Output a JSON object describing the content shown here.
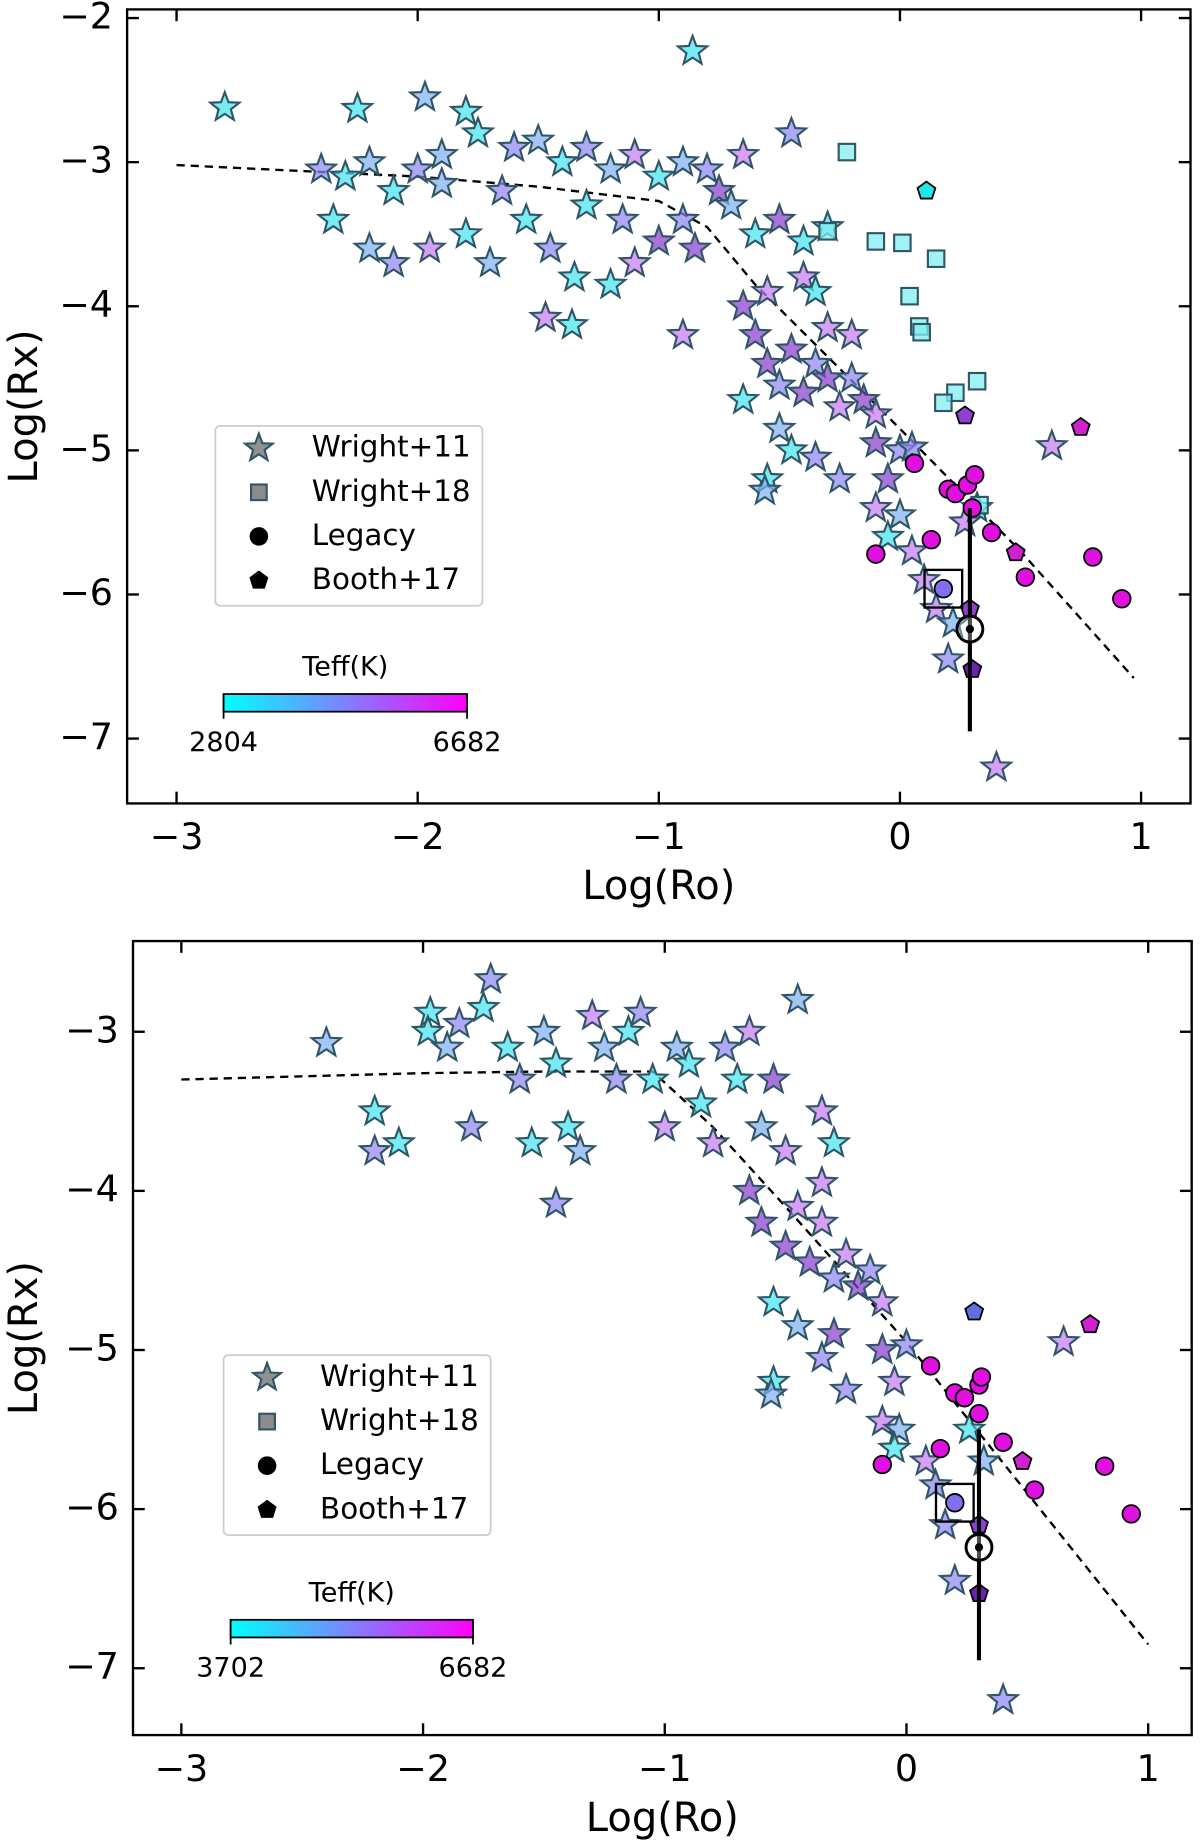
{
  "chart_data": [
    {
      "type": "scatter",
      "xlabel": "Log(Ro)",
      "ylabel": "Log(Rx)",
      "xlim": [
        -3.205,
        1.205
      ],
      "ylim": [
        -7.45,
        -1.94
      ],
      "xticks": [
        {
          "value": -3,
          "label": "−3"
        },
        {
          "value": -2,
          "label": "−2"
        },
        {
          "value": -1,
          "label": "−1"
        },
        0,
        1
      ],
      "yticks": [
        {
          "value": -7,
          "label": "−7"
        },
        {
          "value": -6,
          "label": "−6"
        },
        {
          "value": -5,
          "label": "−5"
        },
        {
          "value": -4,
          "label": "−4"
        },
        {
          "value": -3,
          "label": "−3"
        },
        {
          "value": -2,
          "label": "−2"
        }
      ],
      "colorbar": {
        "label": "Teff(K)",
        "min": 2804,
        "max": 6682,
        "colors": [
          "#00ffff",
          "#8080ff",
          "#ff00ff"
        ]
      },
      "fit": {
        "x": [
          -3,
          -2,
          -1.5,
          -1,
          -0.8,
          -0.6,
          -0.3,
          0,
          0.5,
          0.97
        ],
        "y": [
          -3.02,
          -3.1,
          -3.17,
          -3.27,
          -3.45,
          -3.85,
          -4.35,
          -4.85,
          -5.7,
          -6.58
        ]
      },
      "sun": {
        "x": 0.29,
        "y": -6.24,
        "ylow": -6.95,
        "yhigh": -5.4
      },
      "highlight": {
        "x": 0.18,
        "y": -5.96
      },
      "series": [
        {
          "name": "Wright+11",
          "marker": "star",
          "legend_color": "#666666",
          "x": [
            -2.8,
            -2.25,
            -1.97,
            -1.8,
            -0.86,
            -2.4,
            -2.3,
            -2.2,
            -2.1,
            -2.0,
            -1.9,
            -1.75,
            -1.6,
            -1.5,
            -1.4,
            -1.3,
            -1.2,
            -1.1,
            -1.0,
            -0.9,
            -0.8,
            -0.75,
            -0.65,
            -0.45,
            -2.35,
            -2.2,
            -2.1,
            -1.95,
            -1.8,
            -1.7,
            -1.55,
            -1.45,
            -1.35,
            -1.47,
            -1.36,
            -1.2,
            -1.1,
            -1.0,
            -0.9,
            -0.85,
            -0.7,
            -0.6,
            -0.5,
            -0.55,
            -0.4,
            -0.4,
            -0.3,
            -0.35,
            -0.3,
            -0.2,
            -0.65,
            -0.6,
            -0.55,
            -0.5,
            -0.45,
            -0.4,
            -0.35,
            -0.3,
            -0.25,
            -0.2,
            -0.15,
            -0.1,
            -0.65,
            -0.5,
            -0.45,
            -0.35,
            -0.25,
            -0.55,
            -0.56,
            -0.1,
            0.0,
            -0.05,
            0.05,
            -0.1,
            0.0,
            -0.05,
            0.05,
            0.1,
            0.15,
            0.22,
            0.27,
            0.2,
            0.4,
            0.63,
            -1.9,
            -1.65,
            -1.3,
            -1.15,
            -0.9,
            0.32
          ],
          "y": [
            -2.62,
            -2.63,
            -2.55,
            -2.65,
            -2.23,
            -3.05,
            -3.1,
            -3.0,
            -3.2,
            -3.05,
            -2.95,
            -2.8,
            -2.9,
            -2.85,
            -3.0,
            -2.9,
            -3.05,
            -2.95,
            -3.1,
            -3.0,
            -3.05,
            -3.2,
            -2.95,
            -2.8,
            -3.4,
            -3.6,
            -3.7,
            -3.6,
            -3.5,
            -3.7,
            -3.4,
            -3.6,
            -3.8,
            -4.08,
            -4.13,
            -3.85,
            -3.7,
            -3.55,
            -3.4,
            -3.6,
            -3.3,
            -3.5,
            -3.4,
            -3.9,
            -3.8,
            -3.55,
            -3.45,
            -3.9,
            -4.15,
            -4.2,
            -4.0,
            -4.2,
            -4.4,
            -4.55,
            -4.3,
            -4.6,
            -4.4,
            -4.5,
            -4.7,
            -4.5,
            -4.65,
            -4.75,
            -4.65,
            -4.85,
            -5.0,
            -5.05,
            -5.2,
            -5.2,
            -5.28,
            -4.95,
            -5.0,
            -5.2,
            -4.98,
            -5.4,
            -5.45,
            -5.6,
            -5.7,
            -5.9,
            -6.1,
            -6.2,
            -5.5,
            -6.45,
            -7.2,
            -4.97,
            -3.15,
            -3.2,
            -3.3,
            -3.4,
            -4.2,
            -5.4
          ],
          "colors": [
            "#45e3ee",
            "#45e3ee",
            "#7fb0f0",
            "#45e3ee",
            "#45e3ee",
            "#8f86f2",
            "#45e3ee",
            "#7fb0f0",
            "#45e3ee",
            "#8f86f2",
            "#7fb0f0",
            "#45e3ee",
            "#8f86f2",
            "#7fb0f0",
            "#45e3ee",
            "#8f86f2",
            "#7fb0f0",
            "#c87af2",
            "#45e3ee",
            "#7fb0f0",
            "#8f86f2",
            "#8a3fd0",
            "#c87af2",
            "#8f86f2",
            "#45e3ee",
            "#7fb0f0",
            "#8f86f2",
            "#c87af2",
            "#45e3ee",
            "#7fb0f0",
            "#45e3ee",
            "#8f86f2",
            "#45e3ee",
            "#c87af2",
            "#45e3ee",
            "#45e3ee",
            "#c87af2",
            "#8a3fd0",
            "#8f86f2",
            "#8a3fd0",
            "#7fb0f0",
            "#45e3ee",
            "#8a3fd0",
            "#c87af2",
            "#c87af2",
            "#45e3ee",
            "#45e3ee",
            "#45e3ee",
            "#c87af2",
            "#c87af2",
            "#8a3fd0",
            "#8a3fd0",
            "#8a3fd0",
            "#8f86f2",
            "#8a3fd0",
            "#8a3fd0",
            "#8f86f2",
            "#8a3fd0",
            "#c87af2",
            "#8f86f2",
            "#8a3fd0",
            "#c87af2",
            "#45e3ee",
            "#7fb0f0",
            "#45e3ee",
            "#8f86f2",
            "#8f86f2",
            "#45e3ee",
            "#7fb0f0",
            "#8a3fd0",
            "#8f86f2",
            "#8a3fd0",
            "#8f86f2",
            "#c87af2",
            "#7fb0f0",
            "#45e3ee",
            "#c87af2",
            "#c87af2",
            "#c87af2",
            "#7fb0f0",
            "#c87af2",
            "#8f86f2",
            "#c87af2",
            "#c87af2",
            "#7fb0f0",
            "#8f86f2",
            "#45e3ee",
            "#8f86f2",
            "#c87af2",
            "#45e3ee"
          ]
        },
        {
          "name": "Wright+18",
          "marker": "square",
          "legend_color": "#666666",
          "x": [
            -0.22,
            -0.3,
            -0.1,
            0.01,
            0.15,
            0.04,
            0.08,
            0.09,
            0.32,
            0.23,
            0.18,
            0.33
          ],
          "y": [
            -2.93,
            -3.48,
            -3.55,
            -3.56,
            -3.67,
            -3.93,
            -4.14,
            -4.18,
            -4.52,
            -4.6,
            -4.67,
            -5.38
          ],
          "colors": [
            "#80eef2",
            "#80eef2",
            "#80eef2",
            "#80eef2",
            "#80eef2",
            "#80eef2",
            "#80eef2",
            "#80eef2",
            "#80eef2",
            "#80eef2",
            "#80eef2",
            "#80eef2"
          ]
        },
        {
          "name": "Legacy",
          "marker": "circle",
          "legend_color": "#000000",
          "x": [
            0.06,
            0.2,
            0.23,
            0.28,
            0.31,
            0.3,
            0.38,
            0.52,
            0.8,
            0.92,
            -0.1,
            0.13,
            0.18
          ],
          "y": [
            -5.09,
            -5.27,
            -5.3,
            -5.24,
            -5.17,
            -5.4,
            -5.57,
            -5.88,
            -5.74,
            -6.03,
            -5.72,
            -5.62,
            -5.96
          ],
          "colors": [
            "#e010e0",
            "#e010e0",
            "#e010e0",
            "#e010e0",
            "#e010e0",
            "#e010e0",
            "#e010e0",
            "#e010e0",
            "#e010e0",
            "#e010e0",
            "#e010e0",
            "#e010e0",
            "#8070f0"
          ]
        },
        {
          "name": "Booth+17",
          "marker": "pentagon",
          "legend_color": "#000000",
          "x": [
            0.11,
            0.27,
            0.75,
            0.48,
            0.29,
            0.3
          ],
          "y": [
            -3.2,
            -4.76,
            -4.84,
            -5.71,
            -6.1,
            -6.52
          ],
          "colors": [
            "#20e8e8",
            "#9040d0",
            "#d020d0",
            "#d020d0",
            "#9040d0",
            "#7020b0"
          ]
        }
      ]
    },
    {
      "type": "scatter",
      "xlabel": "Log(Ro)",
      "ylabel": "Log(Rx)",
      "xlim": [
        -3.2,
        1.18
      ],
      "ylim": [
        -7.42,
        -2.43
      ],
      "xticks": [
        {
          "value": -3,
          "label": "−3"
        },
        {
          "value": -2,
          "label": "−2"
        },
        {
          "value": -1,
          "label": "−1"
        },
        0,
        1
      ],
      "yticks": [
        {
          "value": -7,
          "label": "−7"
        },
        {
          "value": -6,
          "label": "−6"
        },
        {
          "value": -5,
          "label": "−5"
        },
        {
          "value": -4,
          "label": "−4"
        },
        {
          "value": -3,
          "label": "−3"
        }
      ],
      "colorbar": {
        "label": "Teff(K)",
        "min": 3702,
        "max": 6682,
        "colors": [
          "#00ffff",
          "#8080ff",
          "#ff00ff"
        ]
      },
      "fit": {
        "x": [
          -3,
          -2,
          -1.5,
          -1.05,
          -0.8,
          -0.5,
          0,
          0.5,
          1
        ],
        "y": [
          -3.3,
          -3.26,
          -3.25,
          -3.25,
          -3.6,
          -4.1,
          -4.95,
          -5.9,
          -6.85
        ]
      },
      "sun": {
        "x": 0.3,
        "y": -6.24,
        "ylow": -6.95,
        "yhigh": -5.5
      },
      "highlight": {
        "x": 0.2,
        "y": -5.96
      },
      "series": [
        {
          "name": "Wright+11",
          "marker": "star",
          "legend_color": "#666666",
          "x": [
            -2.4,
            -2.2,
            -2.2,
            -2.1,
            -1.97,
            -1.98,
            -1.9,
            -1.85,
            -1.8,
            -1.75,
            -1.72,
            -1.65,
            -1.6,
            -1.55,
            -1.5,
            -1.45,
            -1.4,
            -1.45,
            -1.35,
            -1.3,
            -1.25,
            -1.2,
            -1.15,
            -1.1,
            -1.05,
            -1.0,
            -0.95,
            -0.9,
            -0.85,
            -0.8,
            -0.75,
            -0.7,
            -0.65,
            -0.6,
            -0.55,
            -0.5,
            -0.45,
            -0.35,
            -0.3,
            -0.35,
            -0.65,
            -0.6,
            -0.5,
            -0.45,
            -0.4,
            -0.35,
            -0.3,
            -0.25,
            -0.2,
            -0.15,
            -0.1,
            -0.55,
            -0.45,
            -0.35,
            -0.3,
            -0.25,
            -0.55,
            -0.56,
            -0.1,
            0.0,
            -0.05,
            -0.1,
            -0.03,
            -0.05,
            0.08,
            0.12,
            0.16,
            0.2,
            0.26,
            0.32,
            0.4,
            0.65
          ],
          "y": [
            -3.07,
            -3.5,
            -3.75,
            -3.7,
            -2.88,
            -3.0,
            -3.1,
            -2.95,
            -3.6,
            -2.85,
            -2.67,
            -3.1,
            -3.3,
            -3.7,
            -3.0,
            -3.2,
            -3.6,
            -4.08,
            -3.75,
            -2.9,
            -3.1,
            -3.3,
            -3.0,
            -2.88,
            -3.3,
            -3.6,
            -3.1,
            -3.2,
            -3.45,
            -3.7,
            -3.1,
            -3.3,
            -3.0,
            -3.6,
            -3.3,
            -3.75,
            -2.8,
            -3.5,
            -3.7,
            -3.95,
            -4.0,
            -4.2,
            -4.35,
            -4.1,
            -4.45,
            -4.2,
            -4.55,
            -4.4,
            -4.6,
            -4.5,
            -4.7,
            -4.7,
            -4.85,
            -5.05,
            -4.9,
            -5.25,
            -5.2,
            -5.28,
            -5.0,
            -4.97,
            -5.2,
            -5.45,
            -5.5,
            -5.62,
            -5.7,
            -5.85,
            -6.1,
            -6.45,
            -5.5,
            -5.7,
            -7.2,
            -4.95
          ],
          "colors": [
            "#7fb0f0",
            "#45e3ee",
            "#8f86f2",
            "#45e3ee",
            "#45e3ee",
            "#45e3ee",
            "#7fb0f0",
            "#8f86f2",
            "#8f86f2",
            "#45e3ee",
            "#8f86f2",
            "#45e3ee",
            "#8f86f2",
            "#45e3ee",
            "#7fb0f0",
            "#45e3ee",
            "#45e3ee",
            "#8f86f2",
            "#7fb0f0",
            "#c87af2",
            "#7fb0f0",
            "#8f86f2",
            "#45e3ee",
            "#8f86f2",
            "#45e3ee",
            "#c87af2",
            "#7fb0f0",
            "#45e3ee",
            "#45e3ee",
            "#c87af2",
            "#8f86f2",
            "#45e3ee",
            "#c87af2",
            "#7fb0f0",
            "#8a3fd0",
            "#c87af2",
            "#7fb0f0",
            "#c87af2",
            "#45e3ee",
            "#c87af2",
            "#8a3fd0",
            "#8a3fd0",
            "#8a3fd0",
            "#c87af2",
            "#8a3fd0",
            "#c87af2",
            "#8f86f2",
            "#c87af2",
            "#8a3fd0",
            "#8f86f2",
            "#c87af2",
            "#45e3ee",
            "#7fb0f0",
            "#8f86f2",
            "#8a3fd0",
            "#8f86f2",
            "#45e3ee",
            "#7fb0f0",
            "#8a3fd0",
            "#8f86f2",
            "#c87af2",
            "#c87af2",
            "#7fb0f0",
            "#45e3ee",
            "#c87af2",
            "#8f86f2",
            "#8f86f2",
            "#8f86f2",
            "#45e3ee",
            "#7fb0f0",
            "#8f86f2",
            "#c87af2"
          ]
        },
        {
          "name": "Wright+18",
          "marker": "square",
          "legend_color": "#666666",
          "x": [],
          "y": [],
          "colors": []
        },
        {
          "name": "Legacy",
          "marker": "circle",
          "legend_color": "#000000",
          "x": [
            0.1,
            0.2,
            0.24,
            0.3,
            0.31,
            0.3,
            0.4,
            0.53,
            0.82,
            0.93,
            -0.1,
            0.14,
            0.2
          ],
          "y": [
            -5.1,
            -5.27,
            -5.3,
            -5.22,
            -5.17,
            -5.4,
            -5.58,
            -5.88,
            -5.73,
            -6.03,
            -5.72,
            -5.62,
            -5.96
          ],
          "colors": [
            "#e010e0",
            "#e010e0",
            "#e010e0",
            "#e010e0",
            "#e010e0",
            "#e010e0",
            "#e010e0",
            "#e010e0",
            "#e010e0",
            "#e010e0",
            "#e010e0",
            "#e010e0",
            "#8070f0"
          ]
        },
        {
          "name": "Booth+17",
          "marker": "pentagon",
          "legend_color": "#000000",
          "x": [
            0.28,
            0.76,
            0.48,
            0.3,
            0.3
          ],
          "y": [
            -4.76,
            -4.84,
            -5.7,
            -6.1,
            -6.53
          ],
          "colors": [
            "#6070e0",
            "#d020d0",
            "#d020d0",
            "#9040d0",
            "#7020b0"
          ]
        }
      ]
    }
  ]
}
